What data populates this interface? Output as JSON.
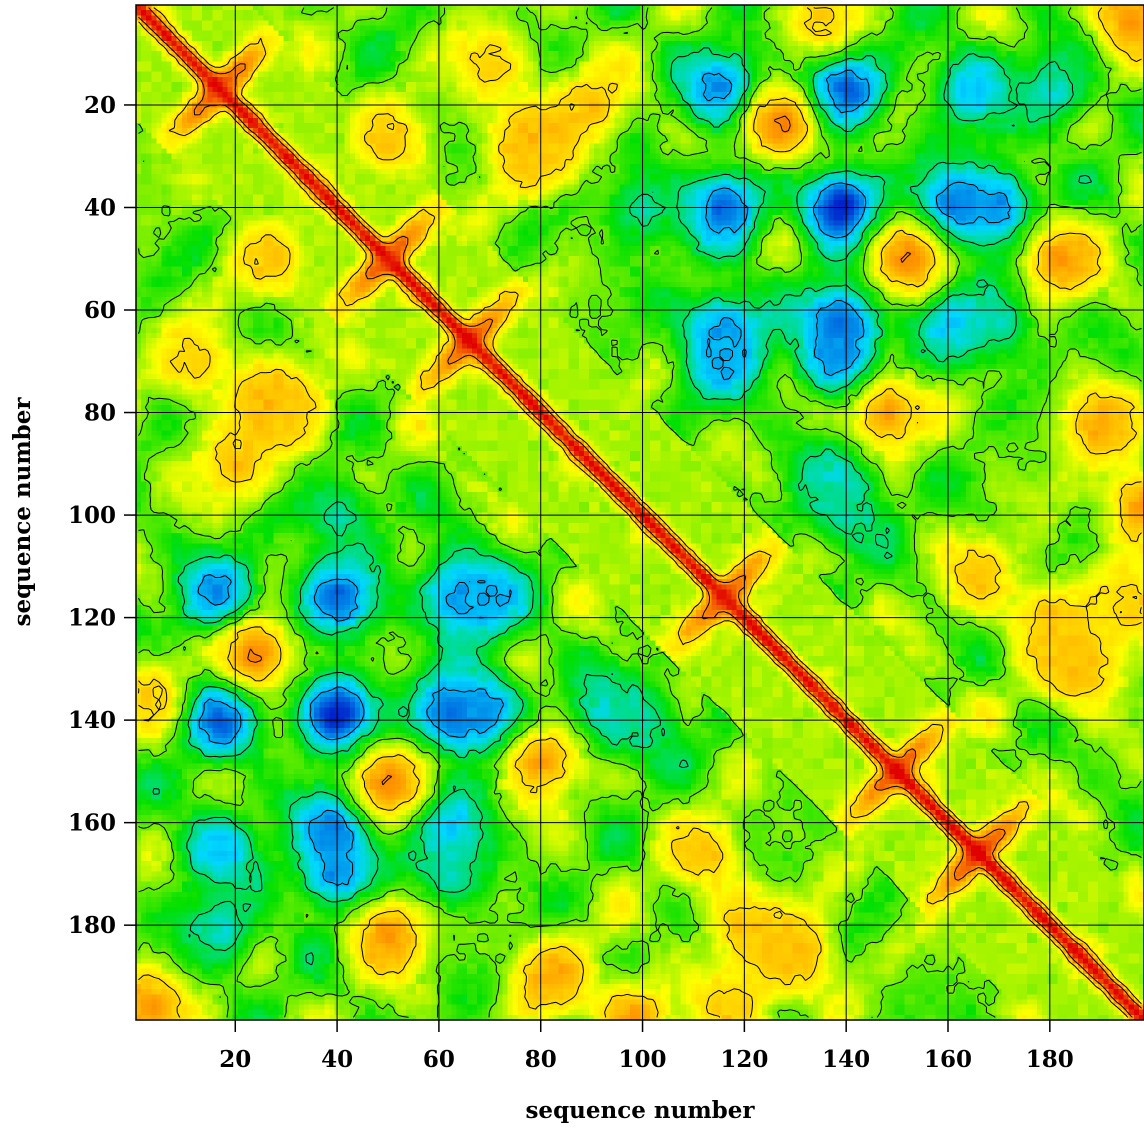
{
  "chart_data": {
    "type": "heatmap",
    "title": "",
    "xlabel": "sequence number",
    "ylabel": "sequence number",
    "xlim": [
      1,
      198
    ],
    "ylim": [
      1,
      198
    ],
    "y_axis_inverted": true,
    "x_ticks": [
      20,
      40,
      60,
      80,
      100,
      120,
      140,
      160,
      180
    ],
    "y_ticks": [
      20,
      40,
      60,
      80,
      100,
      120,
      140,
      160,
      180
    ],
    "x_tick_labels": [
      "20",
      "40",
      "60",
      "80",
      "100",
      "120",
      "140",
      "160",
      "180"
    ],
    "y_tick_labels": [
      "20",
      "40",
      "60",
      "80",
      "100",
      "120",
      "140",
      "160",
      "180"
    ],
    "grid": true,
    "colorscale": [
      "#0018c8",
      "#00d8ff",
      "#00e000",
      "#ffff00",
      "#ff9a00",
      "#e00000"
    ],
    "contours": true,
    "symmetric": true,
    "value_range": [
      0,
      1
    ],
    "diagonal_value": 1.0,
    "hotspots": [
      {
        "x": 139,
        "y": 40,
        "value": 0.0
      },
      {
        "x": 139,
        "y": 17,
        "value": 0.05
      },
      {
        "x": 116,
        "y": 17,
        "value": 0.12
      },
      {
        "x": 116,
        "y": 40,
        "value": 0.1
      },
      {
        "x": 161,
        "y": 40,
        "value": 0.1
      },
      {
        "x": 170,
        "y": 40,
        "value": 0.15
      },
      {
        "x": 139,
        "y": 62,
        "value": 0.1
      },
      {
        "x": 139,
        "y": 70,
        "value": 0.12
      },
      {
        "x": 116,
        "y": 64,
        "value": 0.15
      },
      {
        "x": 116,
        "y": 70,
        "value": 0.2
      },
      {
        "x": 161,
        "y": 62,
        "value": 0.2
      },
      {
        "x": 170,
        "y": 62,
        "value": 0.3
      },
      {
        "x": 139,
        "y": 93,
        "value": 0.25
      },
      {
        "x": 165,
        "y": 17,
        "value": 0.22
      },
      {
        "x": 181,
        "y": 17,
        "value": 0.28
      },
      {
        "x": 100,
        "y": 40,
        "value": 0.32
      },
      {
        "x": 140,
        "y": 100,
        "value": 0.32
      },
      {
        "x": 152,
        "y": 50,
        "value": 0.82
      },
      {
        "x": 182,
        "y": 50,
        "value": 0.8
      },
      {
        "x": 127,
        "y": 24,
        "value": 0.82
      },
      {
        "x": 148,
        "y": 80,
        "value": 0.78
      },
      {
        "x": 27,
        "y": 50,
        "value": 0.72
      },
      {
        "x": 78,
        "y": 27,
        "value": 0.8
      },
      {
        "x": 20,
        "y": 90,
        "value": 0.72
      },
      {
        "x": 30,
        "y": 80,
        "value": 0.72
      },
      {
        "x": 12,
        "y": 70,
        "value": 0.7
      },
      {
        "x": 120,
        "y": 180,
        "value": 0.72
      },
      {
        "x": 130,
        "y": 185,
        "value": 0.72
      },
      {
        "x": 186,
        "y": 128,
        "value": 0.72
      },
      {
        "x": 196,
        "y": 118,
        "value": 0.72
      },
      {
        "x": 112,
        "y": 166,
        "value": 0.72
      },
      {
        "x": 82,
        "y": 190,
        "value": 0.78
      },
      {
        "x": 98,
        "y": 198,
        "value": 0.78
      },
      {
        "x": 196,
        "y": 3,
        "value": 0.8
      },
      {
        "x": 135,
        "y": 3,
        "value": 0.7
      }
    ],
    "crossovers": [
      {
        "x": 17,
        "y": 17
      },
      {
        "x": 50,
        "y": 50
      },
      {
        "x": 66,
        "y": 66
      },
      {
        "x": 116,
        "y": 116
      },
      {
        "x": 150,
        "y": 150
      },
      {
        "x": 166,
        "y": 166
      }
    ]
  }
}
